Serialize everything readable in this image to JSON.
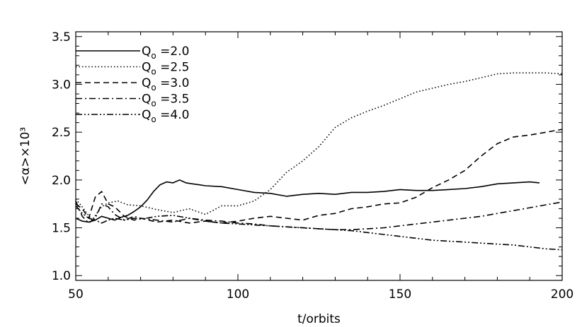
{
  "chart_data": {
    "type": "line",
    "xlabel": "t/orbits",
    "ylabel": "<α>×10³",
    "xlim": [
      50,
      200
    ],
    "ylim": [
      0.95,
      3.55
    ],
    "xticks": [
      "50",
      "100",
      "150",
      "200"
    ],
    "yticks": [
      "1.0",
      "1.5",
      "2.0",
      "2.5",
      "3.0",
      "3.5"
    ],
    "grid": false,
    "legend_position": "top-left",
    "series": [
      {
        "name": "Q_o =2.0",
        "label_main": "Q",
        "label_sub": "o",
        "label_value": " =2.0",
        "style": "solid",
        "x": [
          50,
          52,
          54,
          56,
          58,
          60,
          62,
          64,
          66,
          68,
          70,
          72,
          74,
          76,
          78,
          80,
          82,
          84,
          86,
          88,
          90,
          95,
          100,
          105,
          110,
          115,
          120,
          125,
          130,
          135,
          140,
          145,
          150,
          155,
          160,
          165,
          170,
          175,
          180,
          185,
          190,
          193
        ],
        "y": [
          1.6,
          1.57,
          1.56,
          1.58,
          1.62,
          1.6,
          1.58,
          1.61,
          1.63,
          1.67,
          1.72,
          1.79,
          1.88,
          1.95,
          1.98,
          1.97,
          2.0,
          1.97,
          1.96,
          1.95,
          1.94,
          1.93,
          1.9,
          1.87,
          1.86,
          1.83,
          1.85,
          1.86,
          1.85,
          1.87,
          1.87,
          1.88,
          1.9,
          1.89,
          1.89,
          1.9,
          1.91,
          1.93,
          1.96,
          1.97,
          1.98,
          1.97
        ]
      },
      {
        "name": "Q_o =2.5",
        "label_main": "Q",
        "label_sub": "o",
        "label_value": " =2.5",
        "style": "dotted",
        "x": [
          50,
          52,
          55,
          58,
          60,
          63,
          66,
          70,
          75,
          80,
          85,
          90,
          95,
          100,
          105,
          110,
          115,
          120,
          125,
          130,
          135,
          140,
          145,
          150,
          155,
          160,
          165,
          170,
          175,
          180,
          185,
          190,
          195,
          200
        ],
        "y": [
          1.8,
          1.72,
          1.58,
          1.72,
          1.76,
          1.78,
          1.74,
          1.73,
          1.69,
          1.66,
          1.7,
          1.64,
          1.73,
          1.73,
          1.78,
          1.9,
          2.08,
          2.2,
          2.35,
          2.55,
          2.65,
          2.72,
          2.78,
          2.85,
          2.92,
          2.96,
          3.0,
          3.03,
          3.07,
          3.11,
          3.12,
          3.12,
          3.12,
          3.11
        ]
      },
      {
        "name": "Q_o =3.0",
        "label_main": "Q",
        "label_sub": "o",
        "label_value": " =3.0",
        "style": "dashed",
        "x": [
          50,
          52,
          54,
          56,
          58,
          60,
          62,
          65,
          68,
          70,
          75,
          80,
          85,
          90,
          95,
          100,
          105,
          110,
          115,
          120,
          125,
          130,
          135,
          140,
          145,
          150,
          155,
          160,
          165,
          170,
          175,
          180,
          185,
          190,
          195,
          200
        ],
        "y": [
          1.75,
          1.7,
          1.6,
          1.82,
          1.88,
          1.75,
          1.72,
          1.62,
          1.58,
          1.6,
          1.56,
          1.58,
          1.55,
          1.57,
          1.55,
          1.57,
          1.6,
          1.62,
          1.6,
          1.58,
          1.63,
          1.65,
          1.7,
          1.72,
          1.75,
          1.76,
          1.82,
          1.92,
          2.0,
          2.1,
          2.25,
          2.38,
          2.45,
          2.47,
          2.5,
          2.53
        ]
      },
      {
        "name": "Q_o =3.5",
        "label_main": "Q",
        "label_sub": "o",
        "label_value": " =3.5",
        "style": "dashdot",
        "x": [
          50,
          52,
          54,
          56,
          58,
          60,
          62,
          65,
          68,
          70,
          75,
          80,
          85,
          90,
          95,
          100,
          105,
          110,
          115,
          120,
          125,
          130,
          135,
          140,
          145,
          150,
          155,
          160,
          165,
          170,
          175,
          180,
          185,
          190,
          195,
          200
        ],
        "y": [
          1.78,
          1.62,
          1.55,
          1.6,
          1.75,
          1.72,
          1.64,
          1.58,
          1.62,
          1.6,
          1.58,
          1.56,
          1.6,
          1.58,
          1.57,
          1.55,
          1.54,
          1.52,
          1.51,
          1.5,
          1.49,
          1.48,
          1.48,
          1.49,
          1.5,
          1.52,
          1.54,
          1.56,
          1.58,
          1.6,
          1.62,
          1.65,
          1.68,
          1.71,
          1.74,
          1.77
        ]
      },
      {
        "name": "Q_o =4.0",
        "label_main": "Q",
        "label_sub": "o",
        "label_value": " =4.0",
        "style": "dashdotdot",
        "x": [
          50,
          52,
          54,
          56,
          58,
          60,
          62,
          65,
          68,
          70,
          75,
          80,
          85,
          90,
          95,
          100,
          105,
          110,
          115,
          120,
          125,
          130,
          135,
          140,
          145,
          150,
          155,
          160,
          165,
          170,
          175,
          180,
          185,
          190,
          195,
          200
        ],
        "y": [
          1.73,
          1.65,
          1.6,
          1.58,
          1.55,
          1.58,
          1.6,
          1.58,
          1.6,
          1.59,
          1.62,
          1.63,
          1.6,
          1.57,
          1.55,
          1.54,
          1.53,
          1.52,
          1.51,
          1.5,
          1.49,
          1.48,
          1.47,
          1.45,
          1.43,
          1.41,
          1.39,
          1.37,
          1.36,
          1.35,
          1.34,
          1.33,
          1.32,
          1.3,
          1.28,
          1.27
        ]
      }
    ]
  }
}
